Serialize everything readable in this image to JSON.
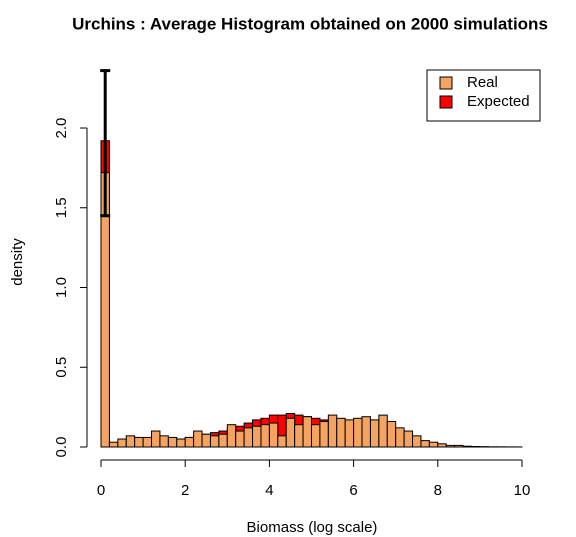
{
  "chart_data": {
    "type": "histogram",
    "title": "Urchins : Average Histogram obtained on 2000 simulations",
    "xlabel": "Biomass (log scale)",
    "ylabel": "density",
    "bins": [
      0,
      0.2,
      0.4,
      0.6,
      0.8,
      1,
      1.2,
      1.4,
      1.6,
      1.8,
      2,
      2.2,
      2.4,
      2.6,
      2.8,
      3,
      3.2,
      3.4,
      3.6,
      3.8,
      4,
      4.2,
      4.4,
      4.6,
      4.8,
      5,
      5.2,
      5.4,
      5.6,
      5.8,
      6,
      6.2,
      6.4,
      6.6,
      6.8,
      7,
      7.2,
      7.4,
      7.6,
      7.8,
      8,
      8.2,
      8.4,
      8.6,
      8.8,
      9,
      9.2,
      9.4,
      9.6,
      9.8,
      10
    ],
    "series": [
      {
        "name": "Expected",
        "color": "#ff0000",
        "values": [
          1.92,
          0.02,
          0.02,
          0.03,
          0.03,
          0.03,
          0.04,
          0.04,
          0.05,
          0.05,
          0.06,
          0.07,
          0.08,
          0.09,
          0.1,
          0.12,
          0.13,
          0.15,
          0.17,
          0.18,
          0.2,
          0.2,
          0.21,
          0.2,
          0.19,
          0.18,
          0.17,
          0.15,
          0.13,
          0.1,
          0.08,
          0.06,
          0.04,
          0.03,
          0.02,
          0.01,
          0.01,
          0.005,
          0.003,
          0.002,
          0.001,
          0.001,
          0.001,
          0.0005,
          0.0005,
          0.0003,
          0.0002,
          0.0002,
          0.0001,
          0.0001
        ]
      },
      {
        "name": "Real",
        "color": "#f4a460",
        "values": [
          1.72,
          0.03,
          0.05,
          0.07,
          0.06,
          0.06,
          0.1,
          0.07,
          0.06,
          0.05,
          0.06,
          0.1,
          0.08,
          0.07,
          0.08,
          0.14,
          0.1,
          0.12,
          0.13,
          0.14,
          0.15,
          0.07,
          0.18,
          0.14,
          0.19,
          0.14,
          0.16,
          0.2,
          0.18,
          0.17,
          0.18,
          0.19,
          0.17,
          0.2,
          0.16,
          0.12,
          0.1,
          0.07,
          0.04,
          0.03,
          0.02,
          0.01,
          0.01,
          0.005,
          0.003,
          0.002,
          0.001,
          0.001,
          0.0005,
          0.0003
        ]
      }
    ],
    "errorbar": {
      "low": 1.45,
      "high": 2.36
    },
    "xlim": [
      0,
      10
    ],
    "xticks": [
      0,
      2,
      4,
      6,
      8,
      10
    ],
    "ylim": [
      0,
      2.36
    ],
    "yticks": [
      {
        "value": 0,
        "label": "0.0"
      },
      {
        "value": 0.5,
        "label": "0.5"
      },
      {
        "value": 1,
        "label": "1.0"
      },
      {
        "value": 1.5,
        "label": "1.5"
      },
      {
        "value": 2,
        "label": "2.0"
      }
    ],
    "legend": "topright"
  }
}
